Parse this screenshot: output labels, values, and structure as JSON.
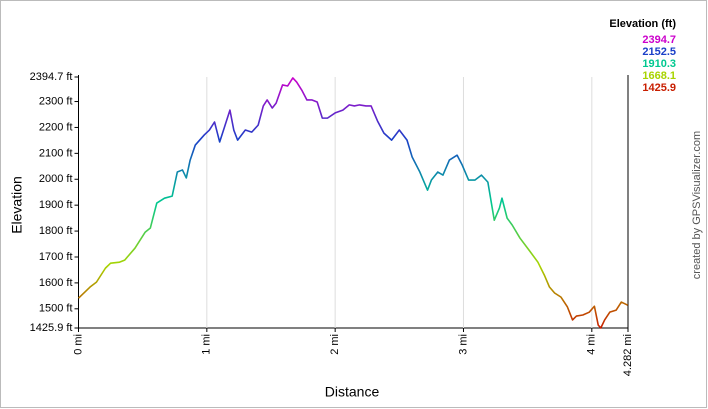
{
  "chart_data": {
    "type": "line",
    "ylabel": "Elevation",
    "xlabel": "Distance",
    "credit": "created by GPSVisualizer.com",
    "x": [
      0,
      0.09,
      0.14,
      0.21,
      0.25,
      0.32,
      0.36,
      0.44,
      0.52,
      0.56,
      0.61,
      0.67,
      0.73,
      0.77,
      0.81,
      0.84,
      0.87,
      0.91,
      0.98,
      1.02,
      1.06,
      1.1,
      1.14,
      1.18,
      1.21,
      1.24,
      1.3,
      1.35,
      1.4,
      1.44,
      1.47,
      1.51,
      1.54,
      1.59,
      1.63,
      1.67,
      1.7,
      1.74,
      1.78,
      1.82,
      1.86,
      1.9,
      1.94,
      2.0,
      2.06,
      2.11,
      2.15,
      2.19,
      2.24,
      2.28,
      2.33,
      2.38,
      2.44,
      2.5,
      2.56,
      2.6,
      2.66,
      2.72,
      2.75,
      2.8,
      2.84,
      2.89,
      2.95,
      2.99,
      3.04,
      3.09,
      3.14,
      3.19,
      3.24,
      3.28,
      3.3,
      3.34,
      3.38,
      3.44,
      3.51,
      3.58,
      3.63,
      3.67,
      3.71,
      3.76,
      3.81,
      3.85,
      3.88,
      3.93,
      3.98,
      4.02,
      4.05,
      4.07,
      4.1,
      4.14,
      4.19,
      4.23,
      4.28
    ],
    "series": [
      {
        "values": [
          1541,
          1584,
          1603,
          1657,
          1676,
          1680,
          1688,
          1734,
          1796,
          1812,
          1908,
          1927,
          1935,
          2028,
          2036,
          2005,
          2074,
          2132,
          2171,
          2190,
          2221,
          2144,
          2205,
          2267,
          2190,
          2151,
          2190,
          2182,
          2209,
          2283,
          2306,
          2275,
          2294,
          2364,
          2360,
          2391,
          2375,
          2344,
          2306,
          2306,
          2298,
          2236,
          2236,
          2256,
          2267,
          2287,
          2283,
          2287,
          2283,
          2283,
          2225,
          2178,
          2151,
          2190,
          2151,
          2086,
          2028,
          1958,
          1997,
          2028,
          2016,
          2074,
          2093,
          2055,
          1997,
          1997,
          2016,
          1989,
          1842,
          1889,
          1927,
          1850,
          1823,
          1773,
          1727,
          1680,
          1630,
          1584,
          1561,
          1545,
          1507,
          1457,
          1472,
          1476,
          1487,
          1510,
          1437,
          1426,
          1457,
          1487,
          1495,
          1526,
          1514
        ]
      }
    ],
    "xlim": [
      0,
      4.282
    ],
    "ylim": [
      1425.9,
      2394.7
    ],
    "yticks": [
      {
        "value": 1425.9,
        "label": "1425.9 ft"
      },
      {
        "value": 1500,
        "label": "1500 ft"
      },
      {
        "value": 1600,
        "label": "1600 ft"
      },
      {
        "value": 1700,
        "label": "1700 ft"
      },
      {
        "value": 1800,
        "label": "1800 ft"
      },
      {
        "value": 1900,
        "label": "1900 ft"
      },
      {
        "value": 2000,
        "label": "2000 ft"
      },
      {
        "value": 2100,
        "label": "2100 ft"
      },
      {
        "value": 2200,
        "label": "2200 ft"
      },
      {
        "value": 2300,
        "label": "2300 ft"
      },
      {
        "value": 2394.7,
        "label": "2394.7 ft"
      }
    ],
    "xticks": [
      {
        "value": 0,
        "label": "0 mi"
      },
      {
        "value": 1,
        "label": "1 mi"
      },
      {
        "value": 2,
        "label": "2 mi"
      },
      {
        "value": 3,
        "label": "3 mi"
      },
      {
        "value": 4,
        "label": "4 mi"
      },
      {
        "value": 4.282,
        "label": "4.282 mi"
      }
    ],
    "legend": {
      "title": "Elevation (ft)",
      "items": [
        {
          "value": 2394.7,
          "color": "#cc00cc"
        },
        {
          "value": 2152.5,
          "color": "#1a3fc8"
        },
        {
          "value": 1910.3,
          "color": "#00c890"
        },
        {
          "value": 1668.1,
          "color": "#a8d400"
        },
        {
          "value": 1425.9,
          "color": "#c81e00"
        }
      ]
    }
  }
}
